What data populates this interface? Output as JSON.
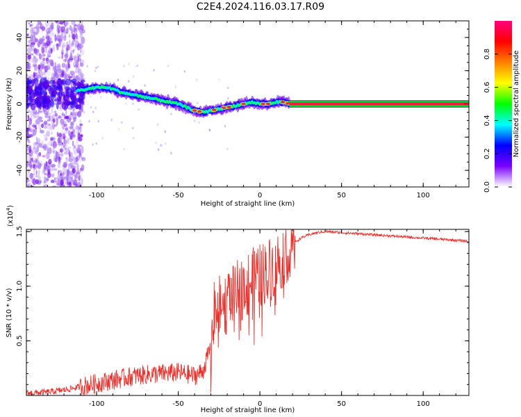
{
  "title": "C2E4.2024.116.03.17.R09",
  "chart_data": [
    {
      "type": "heatmap",
      "xlabel": "Height of straight line (km)",
      "ylabel": "Frequency (Hz)",
      "xlim": [
        -143,
        128
      ],
      "ylim": [
        -50,
        50
      ],
      "xticks": [
        -100,
        -50,
        0,
        50,
        100
      ],
      "yticks": [
        -40,
        -20,
        0,
        20,
        40
      ],
      "colorbar": {
        "label": "Normalized spectral amplitude",
        "range": [
          0,
          1
        ],
        "ticks": [
          "0.0",
          "0.2",
          "0.4",
          "0.6",
          "0.8"
        ],
        "colormap": [
          "#ffffff",
          "#7a00ff",
          "#0000ff",
          "#00ffff",
          "#00ff00",
          "#ffff00",
          "#ff8000",
          "#ff0000",
          "#ff0080"
        ]
      },
      "ridge": {
        "description_free": true,
        "x": [
          -112,
          -105,
          -100,
          -95,
          -90,
          -85,
          -80,
          -75,
          -70,
          -65,
          -60,
          -55,
          -50,
          -45,
          -40,
          -35,
          -30,
          -25,
          -20,
          -15,
          -10,
          -5,
          0,
          5,
          10,
          15,
          18
        ],
        "y": [
          8,
          9,
          10,
          10,
          9,
          7,
          6,
          5,
          4,
          3,
          2,
          1,
          0,
          -2,
          -4,
          -5,
          -4,
          -3,
          -2,
          -1,
          0,
          1,
          0,
          0,
          1,
          1,
          0
        ]
      },
      "tone_line": {
        "x_start": 18,
        "x_end": 128,
        "frequency": 0
      }
    },
    {
      "type": "line",
      "xlabel": "Height of straight line (km)",
      "ylabel": "SNR (10 * v/v)",
      "yscale_label": "(x10",
      "yscale_exp": "4",
      "yscale_close": ")",
      "xlim": [
        -143,
        128
      ],
      "ylim": [
        0,
        1.52
      ],
      "xticks": [
        -100,
        -50,
        0,
        50,
        100
      ],
      "yticks": [
        "0.5",
        "1.0",
        "1.5"
      ],
      "color": "#e8322e",
      "series": [
        {
          "x": [
            -143,
            -130,
            -120,
            -110,
            -100,
            -90,
            -80,
            -70,
            -60,
            -50,
            -40,
            -35,
            -30,
            -28,
            -25,
            -20,
            -15,
            -10,
            -5,
            0,
            5,
            10,
            15,
            20,
            25,
            30,
            35,
            40,
            50,
            60,
            70,
            80,
            90,
            100,
            110,
            120,
            128
          ],
          "y": [
            0.02,
            0.03,
            0.05,
            0.08,
            0.11,
            0.14,
            0.17,
            0.19,
            0.2,
            0.21,
            0.18,
            0.22,
            0.45,
            0.75,
            0.8,
            0.85,
            0.92,
            1.0,
            1.05,
            1.1,
            1.15,
            1.2,
            1.3,
            1.38,
            1.44,
            1.47,
            1.49,
            1.5,
            1.49,
            1.48,
            1.47,
            1.46,
            1.45,
            1.44,
            1.43,
            1.42,
            1.41
          ]
        }
      ]
    }
  ]
}
